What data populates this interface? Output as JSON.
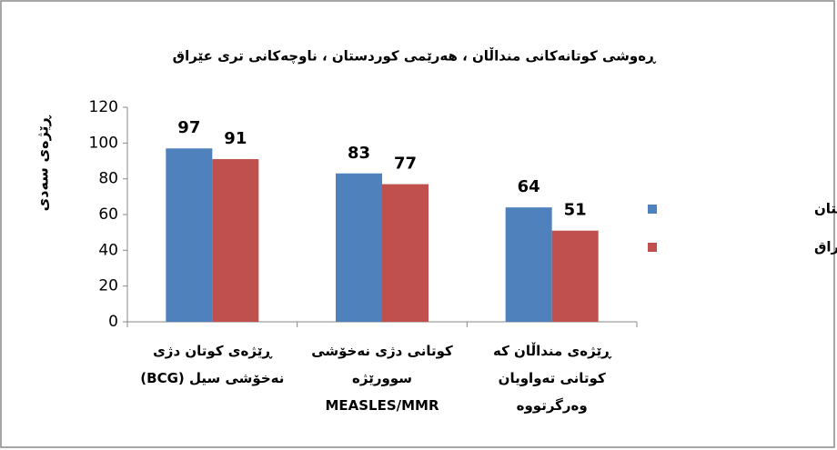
{
  "chart_data": {
    "type": "bar",
    "title": "ڕەوشی کوتانەکانی منداڵان ، هەرێمی کوردستان ، ناوچەکانی تری عێراق",
    "y_label": "ڕێژەی سەدی",
    "categories": [
      "ڕێژەی کوتان دژی\nنەخۆشی سیل (BCG)",
      "کوتانی دژی نەخۆشی\nسوورێژە\nMEASLES/MMR",
      "ڕێژەی منداڵان کە\nکوتانی تەواویان\nوەرگرتووە"
    ],
    "series": [
      {
        "name": "هەرێمی کوردستان",
        "color": "#4f81bd",
        "values": [
          97,
          83,
          64
        ]
      },
      {
        "name": "ناوچەکانی تری عێراق",
        "color": "#c0504d",
        "values": [
          91,
          77,
          51
        ]
      }
    ],
    "ylim": [
      0,
      120
    ],
    "yticks": [
      0,
      20,
      40,
      60,
      80,
      100,
      120
    ],
    "grid": false,
    "legend": "right"
  }
}
